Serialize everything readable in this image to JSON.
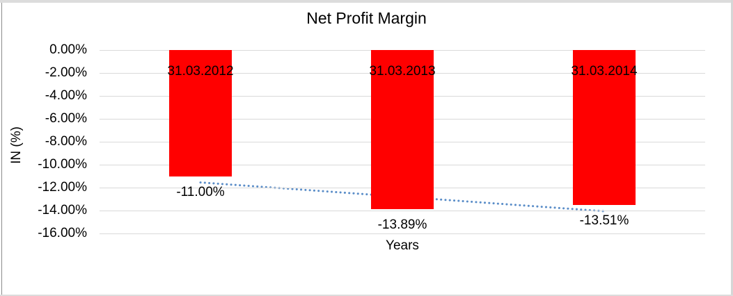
{
  "chart_data": {
    "type": "bar",
    "title": "Net Profit Margin",
    "xlabel": "Years",
    "ylabel": "IN (%)",
    "categories": [
      "31.03.2012",
      "31.03.2013",
      "31.03.2014"
    ],
    "values": [
      -11.0,
      -13.89,
      -13.51
    ],
    "value_labels": [
      "-11.00%",
      "-13.89%",
      "-13.51%"
    ],
    "series": [
      {
        "name": "Net Profit Margin",
        "values": [
          -11.0,
          -13.89,
          -13.51
        ]
      }
    ],
    "ylim": [
      -16,
      0
    ],
    "y_ticks": [
      "0.00%",
      "-2.00%",
      "-4.00%",
      "-6.00%",
      "-8.00%",
      "-10.00%",
      "-12.00%",
      "-14.00%",
      "-16.00%"
    ],
    "grid": true,
    "legend": "none",
    "bar_color": "#FF0000",
    "gridline_color": "#D9D9D9",
    "label_color": "#000000",
    "trendline": {
      "type": "linear",
      "style": "dotted",
      "color": "#5A8DC8",
      "start_value": -11.55,
      "end_value": -14.06
    }
  }
}
